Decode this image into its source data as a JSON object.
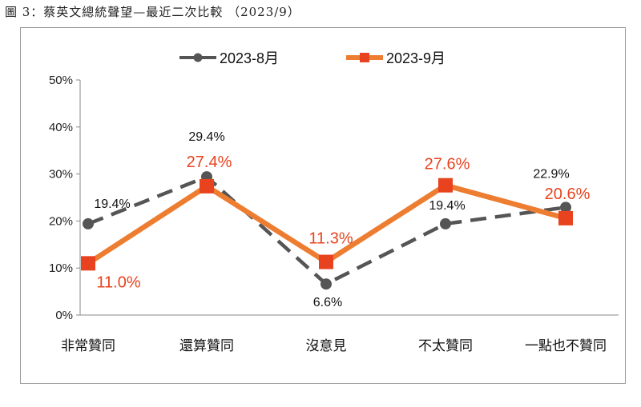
{
  "figure_title": "圖 3：蔡英文總統聲望—最近二次比較 （2023/9）",
  "colors": {
    "aug": "#555555",
    "sep": "#ED7D31",
    "sep_label": "#E8431E",
    "axis": "#888888"
  },
  "chart_data": {
    "type": "line",
    "title": "",
    "xlabel": "",
    "ylabel": "",
    "categories": [
      "非常贊同",
      "還算贊同",
      "沒意見",
      "不太贊同",
      "一點也不贊同"
    ],
    "ylim": [
      0,
      50
    ],
    "yticks": [
      0,
      10,
      20,
      30,
      40,
      50
    ],
    "ytick_labels": [
      "0%",
      "10%",
      "20%",
      "30%",
      "40%",
      "50%"
    ],
    "legend_position": "top",
    "series": [
      {
        "name": "2023-8月",
        "values": [
          19.4,
          29.4,
          6.6,
          19.4,
          22.9
        ],
        "labels": [
          "19.4%",
          "29.4%",
          "6.6%",
          "19.4%",
          "22.9%"
        ],
        "style": "dashed",
        "marker": "circle"
      },
      {
        "name": "2023-9月",
        "values": [
          11.0,
          27.4,
          11.3,
          27.6,
          20.6
        ],
        "labels": [
          "11.0%",
          "27.4%",
          "11.3%",
          "27.6%",
          "20.6%"
        ],
        "style": "solid",
        "marker": "square"
      }
    ]
  }
}
